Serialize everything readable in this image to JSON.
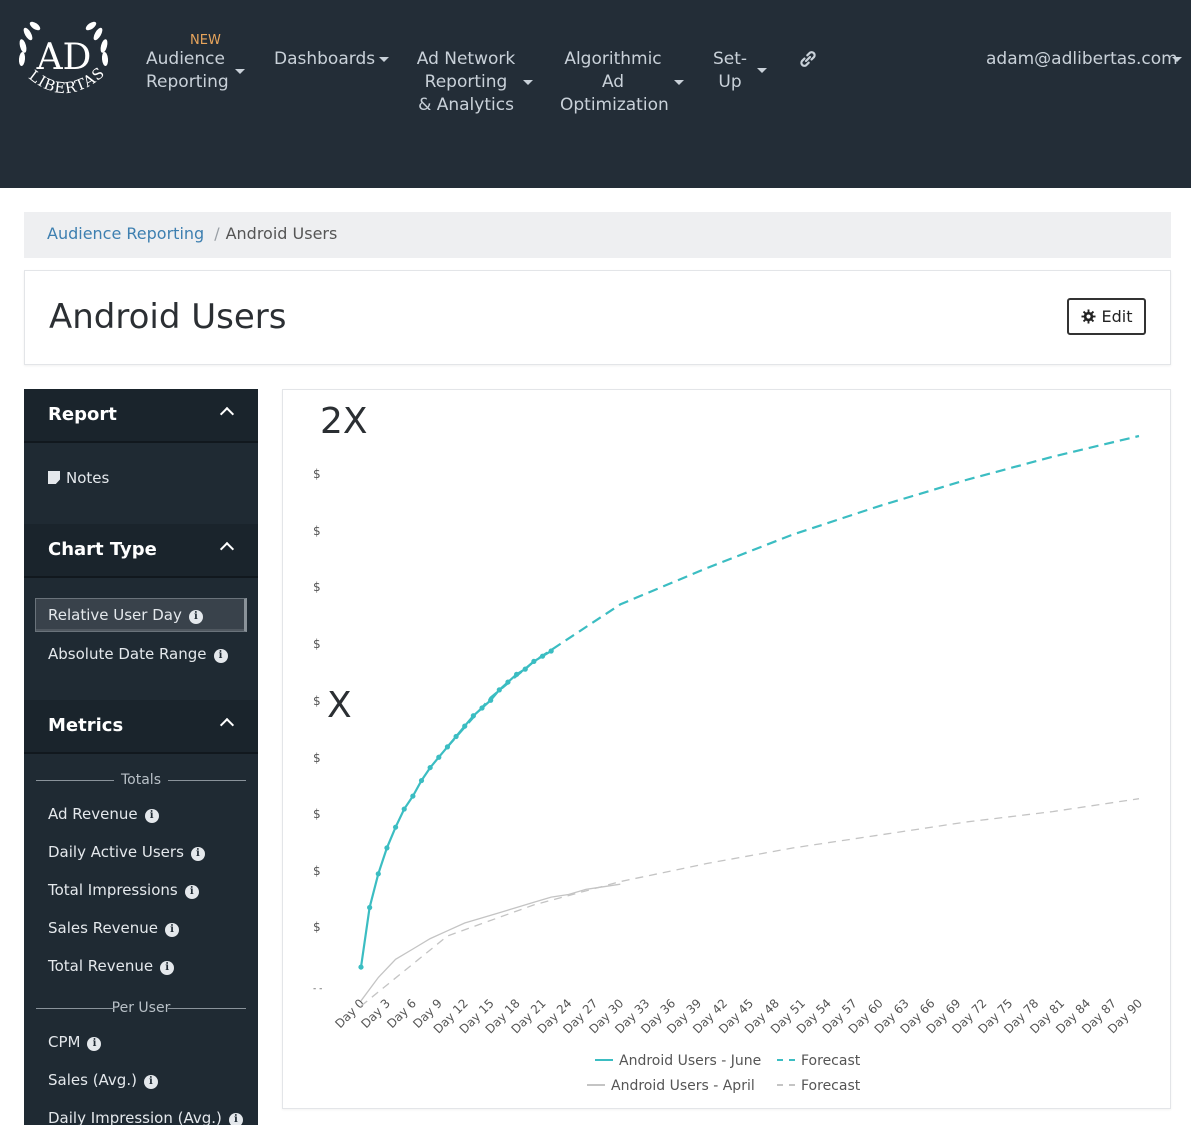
{
  "nav": {
    "brand_top": "AD",
    "brand_bottom": "LIBERTAS",
    "new_badge": "NEW",
    "items": [
      {
        "lines": [
          "Audience",
          "Reporting"
        ]
      },
      {
        "lines": [
          "Dashboards"
        ]
      },
      {
        "lines": [
          "Ad Network",
          "Reporting",
          "& Analytics"
        ]
      },
      {
        "lines": [
          "Algorithmic",
          "Ad",
          "Optimization"
        ]
      },
      {
        "lines": [
          "Set-",
          "Up"
        ]
      }
    ],
    "link_icon": "link-icon",
    "user_email": "adam@adlibertas.com"
  },
  "breadcrumb": {
    "parent": "Audience Reporting",
    "current": "Android Users"
  },
  "page": {
    "title": "Android Users",
    "edit_label": "Edit",
    "edit_icon": "gear-icon"
  },
  "sidebar": {
    "report": {
      "title": "Report",
      "items": [
        "Notes"
      ]
    },
    "chart_type": {
      "title": "Chart Type",
      "items": [
        "Relative User Day",
        "Absolute Date Range"
      ],
      "selected": "Relative User Day"
    },
    "metrics": {
      "title": "Metrics",
      "totals_label": "Totals",
      "totals": [
        "Ad Revenue",
        "Daily Active Users",
        "Total Impressions",
        "Sales Revenue",
        "Total Revenue"
      ],
      "per_user_label": "Per User",
      "per_user": [
        "CPM",
        "Sales (Avg.)",
        "Daily Impression (Avg.)"
      ]
    }
  },
  "colors": {
    "nav_bg": "#232d37",
    "sidebar_bg": "#1f2a33",
    "teal": "#3bbdc2",
    "gray": "#c4c4c4",
    "link": "#3d7fb0",
    "new_badge": "#e8a55c"
  },
  "chart_data": {
    "type": "line",
    "y_tick_labels": [
      "$",
      "$",
      "$",
      "$",
      "$",
      "$",
      "$",
      "$",
      "$",
      "- -"
    ],
    "annotations": [
      {
        "text": "2X",
        "at_y_multiple": 2
      },
      {
        "text": "X",
        "at_y_multiple": 1
      }
    ],
    "x_tick_labels": [
      "Day 0",
      "Day 3",
      "Day 6",
      "Day 9",
      "Day 12",
      "Day 15",
      "Day 18",
      "Day 21",
      "Day 24",
      "Day 27",
      "Day 30",
      "Day 33",
      "Day 36",
      "Day 39",
      "Day 42",
      "Day 45",
      "Day 48",
      "Day 51",
      "Day 54",
      "Day 57",
      "Day 60",
      "Day 63",
      "Day 66",
      "Day 69",
      "Day 72",
      "Day 75",
      "Day 78",
      "Day 81",
      "Day 84",
      "Day 87",
      "Day 90"
    ],
    "x_range": [
      0,
      90
    ],
    "y_range": [
      0,
      2.2
    ],
    "grid": false,
    "legend_position": "bottom",
    "series": [
      {
        "name": "Android Users - June",
        "style": "solid",
        "color": "#3bbdc2",
        "markers": true,
        "x": [
          0,
          1,
          2,
          3,
          4,
          5,
          6,
          7,
          8,
          9,
          10,
          11,
          12,
          13,
          14,
          15,
          16,
          17,
          18,
          19,
          20,
          21,
          22
        ],
        "y": [
          0.1,
          0.33,
          0.46,
          0.56,
          0.64,
          0.71,
          0.76,
          0.82,
          0.87,
          0.91,
          0.95,
          0.99,
          1.03,
          1.07,
          1.1,
          1.13,
          1.17,
          1.2,
          1.23,
          1.25,
          1.28,
          1.3,
          1.32
        ]
      },
      {
        "name": "Forecast",
        "style": "dashed",
        "color": "#3bbdc2",
        "x": [
          10,
          15,
          20,
          30,
          40,
          50,
          60,
          70,
          80,
          90
        ],
        "y": [
          0.95,
          1.14,
          1.28,
          1.5,
          1.64,
          1.77,
          1.88,
          1.98,
          2.07,
          2.15
        ]
      },
      {
        "name": "Android Users - April",
        "style": "solid",
        "color": "#c4c4c4",
        "x": [
          0,
          2,
          4,
          6,
          8,
          10,
          12,
          14,
          16,
          18,
          20,
          22,
          24,
          26,
          28,
          30
        ],
        "y": [
          -0.03,
          0.06,
          0.13,
          0.17,
          0.21,
          0.24,
          0.27,
          0.29,
          0.31,
          0.33,
          0.35,
          0.37,
          0.38,
          0.4,
          0.41,
          0.42
        ]
      },
      {
        "name": "Forecast",
        "style": "dashed",
        "color": "#c4c4c4",
        "x": [
          0,
          10,
          20,
          30,
          40,
          50,
          60,
          70,
          80,
          90
        ],
        "y": [
          -0.05,
          0.22,
          0.34,
          0.43,
          0.5,
          0.56,
          0.61,
          0.66,
          0.7,
          0.75
        ]
      }
    ]
  }
}
